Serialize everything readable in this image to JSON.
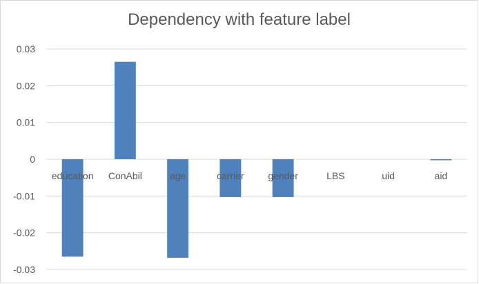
{
  "chart_data": {
    "type": "bar",
    "title": "Dependency with feature label",
    "xlabel": "",
    "ylabel": "",
    "categories": [
      "education",
      "ConAbil",
      "age",
      "carrier",
      "gender",
      "LBS",
      "uid",
      "aid"
    ],
    "series": [
      {
        "values": [
          -0.0265,
          0.0265,
          -0.0268,
          -0.0103,
          -0.0103,
          0,
          0,
          -0.0002
        ]
      }
    ],
    "ylim": [
      -0.03,
      0.03
    ],
    "yticks": [
      0.03,
      0.02,
      0.01,
      0,
      -0.01,
      -0.02,
      -0.03
    ],
    "ytick_labels": [
      "0.03",
      "0.02",
      "0.01",
      "0",
      "-0.01",
      "-0.02",
      "-0.03"
    ],
    "grid": true,
    "legend": "none",
    "colors": {
      "bar": "#4f81bd",
      "grid": "#d9d9d9",
      "text": "#595959"
    }
  }
}
